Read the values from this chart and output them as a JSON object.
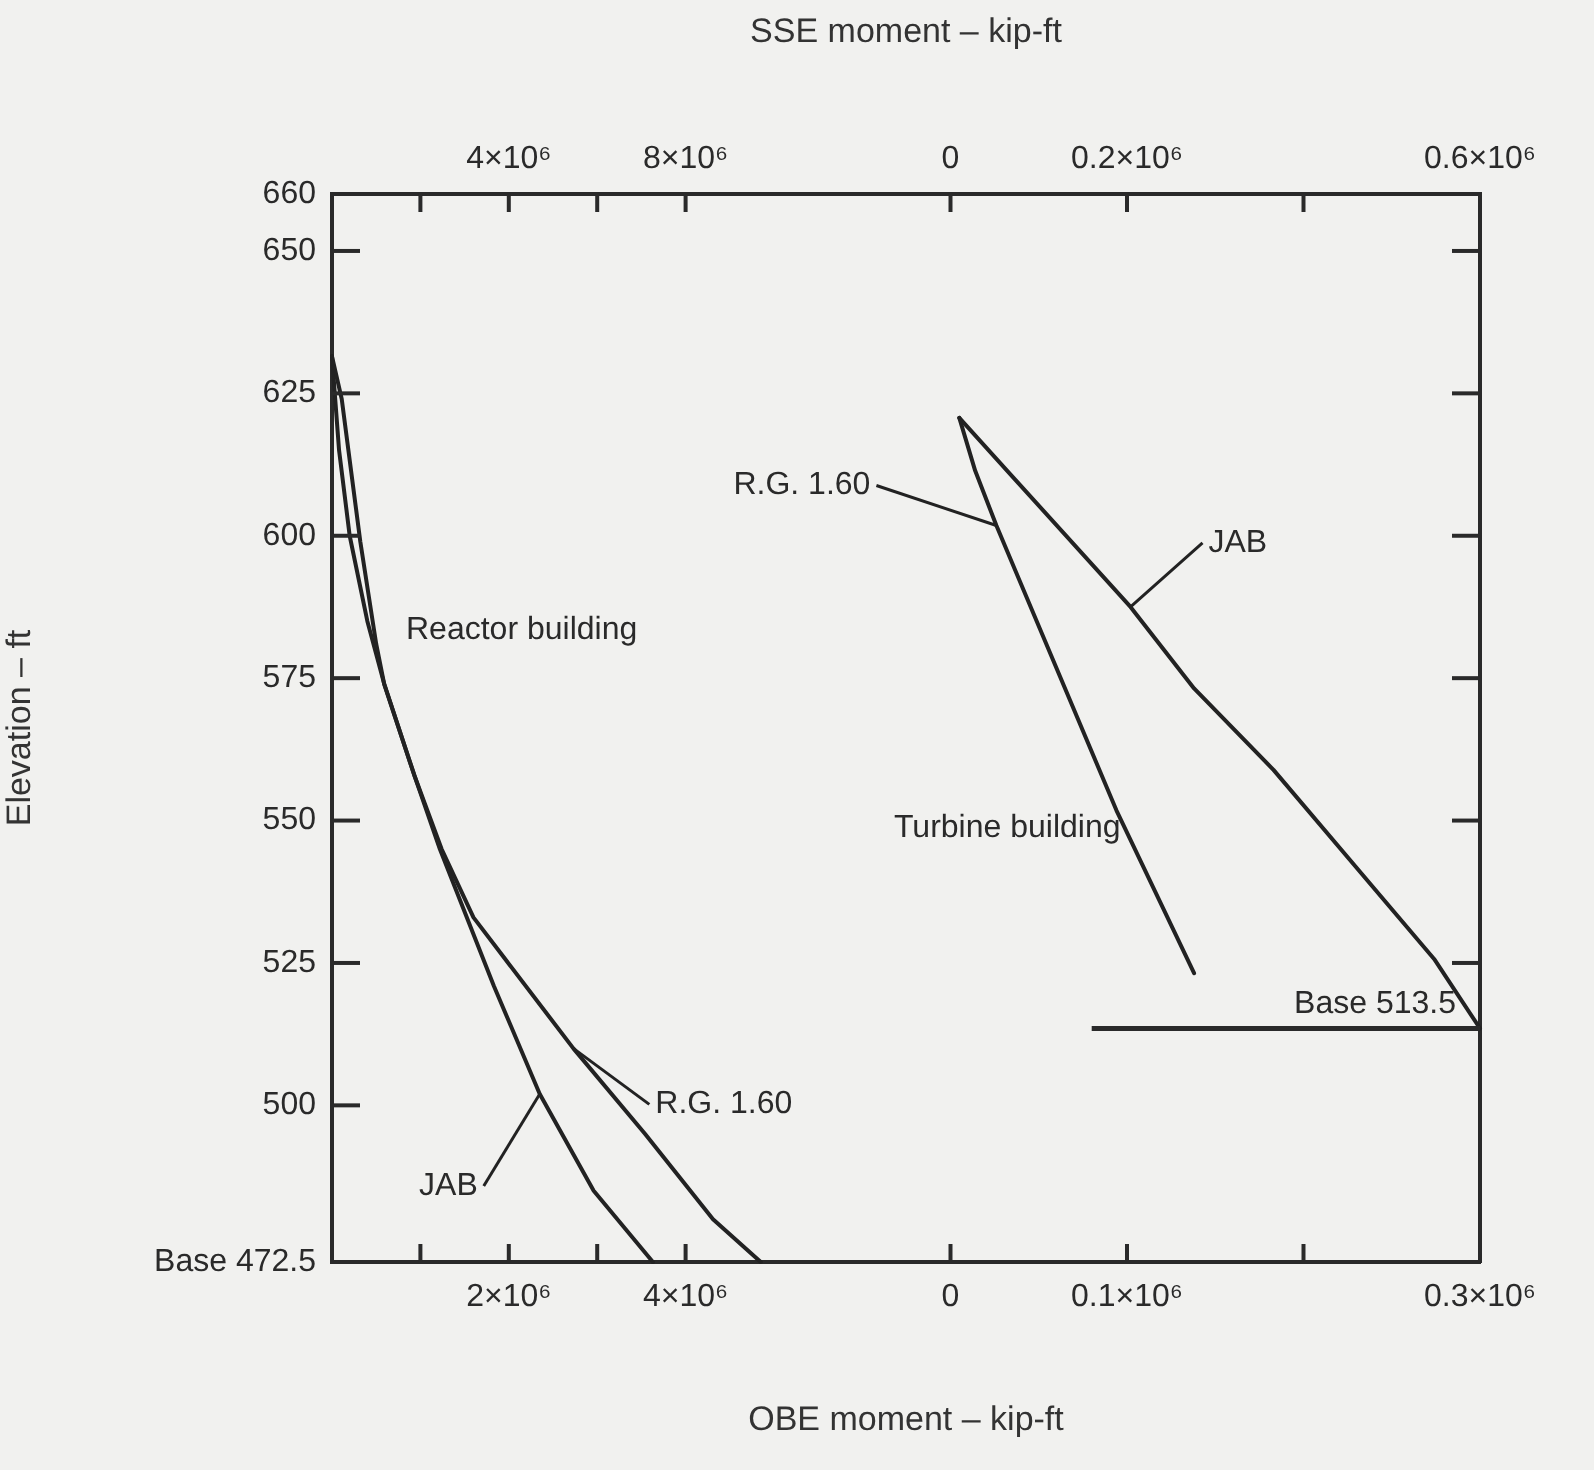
{
  "chart_data": [
    {
      "type": "line",
      "ylabel": "Elevation – ft",
      "xlabel": "OBE moment – kip-ft",
      "x2label": "SSE moment – kip-ft",
      "xlim": [
        0,
        5000000
      ],
      "xticks": [
        {
          "value": 1000000,
          "label": null
        },
        {
          "value": 2000000,
          "label": "2×10⁶"
        },
        {
          "value": 3000000,
          "label": null
        },
        {
          "value": 4000000,
          "label": "4×10⁶"
        }
      ],
      "x2lim": [
        0,
        10000000
      ],
      "x2ticks": [
        {
          "value": 2000000,
          "label": null
        },
        {
          "value": 4000000,
          "label": "4×10⁶"
        },
        {
          "value": 6000000,
          "label": null
        },
        {
          "value": 8000000,
          "label": "8×10⁶"
        }
      ],
      "ylim": [
        472.5,
        660
      ],
      "yticks": [
        {
          "value": 472.5,
          "label": "Base 472.5"
        },
        500,
        525,
        550,
        575,
        600,
        625,
        650,
        660
      ],
      "grid": false,
      "legend": false,
      "marker": "none",
      "line_style": "solid",
      "annotations": [
        "Reactor building"
      ],
      "series": [
        {
          "name": "JAB",
          "color": "#222222",
          "x": [
            0,
            110000,
            320000,
            500000,
            590000,
            930000,
            1220000,
            1830000,
            2350000,
            2960000,
            3630000
          ],
          "values": [
            631.5,
            624,
            599,
            581,
            574,
            558,
            545,
            521,
            502,
            485,
            472.5
          ]
        },
        {
          "name": "R.G. 1.60",
          "color": "#222222",
          "x": [
            0,
            80000,
            200000,
            400000,
            590000,
            930000,
            1240000,
            1600000,
            2730000,
            3540000,
            4310000,
            4850000
          ],
          "values": [
            631.5,
            615,
            600,
            585,
            574,
            558,
            545,
            533,
            510,
            495,
            480,
            472.5
          ]
        }
      ]
    },
    {
      "type": "line",
      "xlim": [
        -100000,
        300000
      ],
      "xticks": [
        0,
        {
          "value": 100000,
          "label": "0.1×10⁶"
        },
        {
          "value": 200000,
          "label": null
        },
        {
          "value": 300000,
          "label": "0.3×10⁶"
        }
      ],
      "x2lim": [
        -200000,
        600000
      ],
      "x2ticks": [
        0,
        {
          "value": 200000,
          "label": "0.2×10⁶"
        },
        {
          "value": 400000,
          "label": null
        },
        {
          "value": 600000,
          "label": "0.6×10⁶"
        }
      ],
      "ylim": [
        472.5,
        660
      ],
      "yticks": [
        525,
        550,
        575,
        600,
        625,
        650
      ],
      "tick_labels": "x",
      "grid": false,
      "marker": "none",
      "line_style": "solid",
      "ref_lines": [
        {
          "axis": "y",
          "value": 513.5,
          "label": "Base 513.5"
        }
      ],
      "annotations": [
        "Turbine building"
      ],
      "series": [
        {
          "name": "R.G. 1.60",
          "color": "#222222",
          "x": [
            5000,
            14000,
            26000,
            94000,
            138000
          ],
          "values": [
            620.7,
            611.4,
            601.8,
            551.8,
            523.2
          ]
        },
        {
          "name": "JAB",
          "color": "#222222",
          "x": [
            5000,
            102000,
            138000,
            183000,
            232000,
            274000,
            300000
          ],
          "values": [
            620.7,
            587.5,
            573.2,
            558.9,
            541,
            525.7,
            513.5
          ]
        }
      ]
    }
  ]
}
